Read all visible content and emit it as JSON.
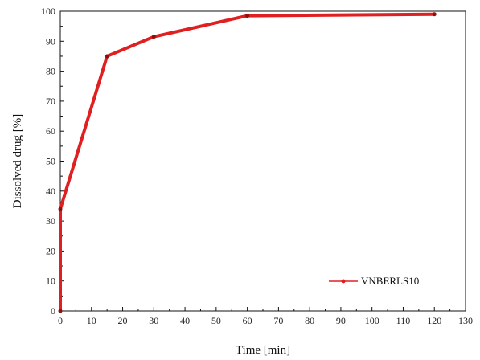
{
  "chart_data": {
    "type": "line",
    "title": "",
    "xlabel": "Time [min]",
    "ylabel": "Dissolved drug [%]",
    "xlim": [
      0,
      130
    ],
    "ylim": [
      0,
      100
    ],
    "x_ticks": [
      0,
      10,
      20,
      30,
      40,
      50,
      60,
      70,
      80,
      90,
      100,
      110,
      120,
      130
    ],
    "y_ticks": [
      0,
      10,
      20,
      30,
      40,
      50,
      60,
      70,
      80,
      90,
      100
    ],
    "grid": false,
    "legend_position": "bottom-right",
    "series": [
      {
        "name": "VNBERLS10",
        "color": "#e02020",
        "x": [
          0,
          0,
          15,
          30,
          60,
          120
        ],
        "y": [
          0,
          34,
          85,
          91.5,
          98.5,
          99
        ]
      }
    ]
  }
}
